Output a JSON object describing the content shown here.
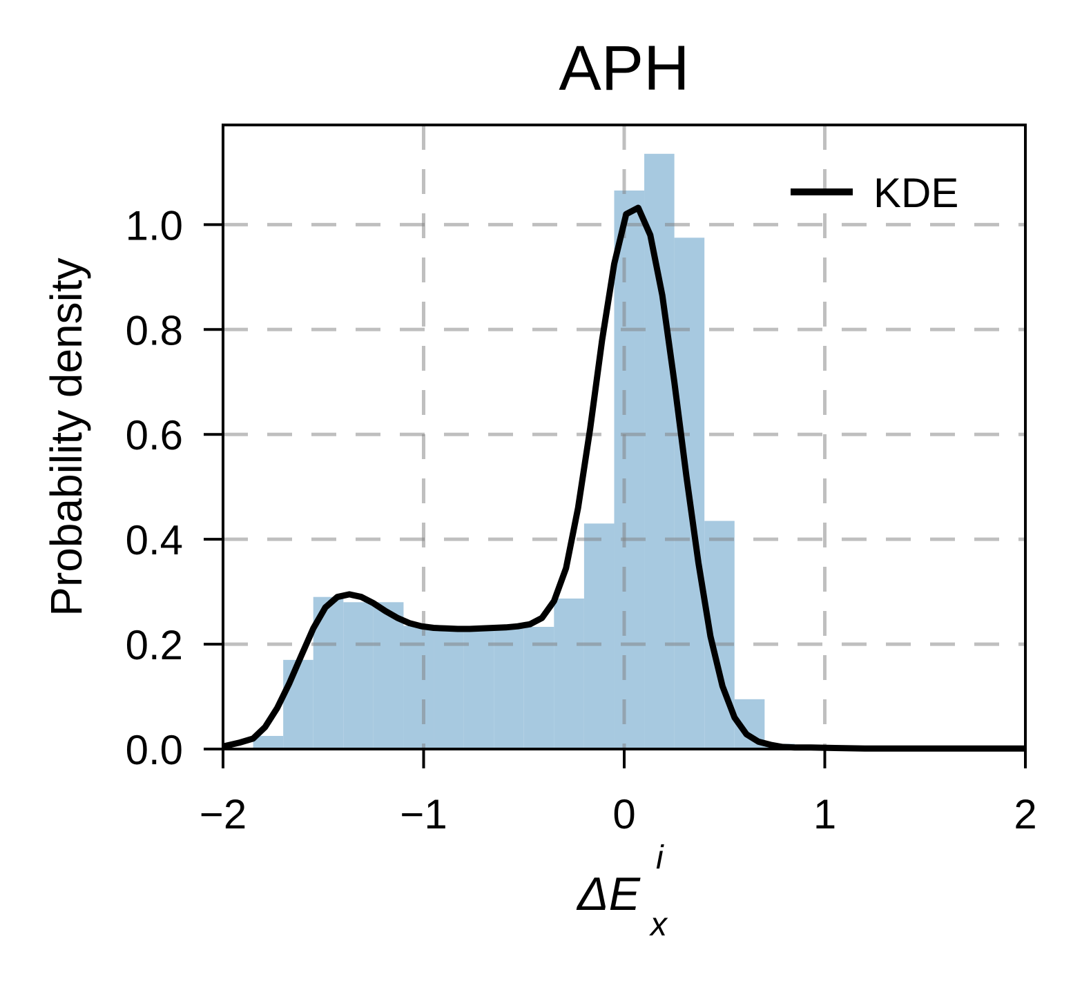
{
  "chart_data": {
    "type": "bar",
    "title": "APH",
    "ylabel": "Probability density",
    "xlabel": {
      "base": "ΔE",
      "superscript": "i",
      "subscript": "x"
    },
    "xlim": [
      -2,
      2
    ],
    "ylim": [
      0,
      1.19
    ],
    "xticks": [
      -2,
      -1,
      0,
      1,
      2
    ],
    "xtick_labels": [
      "−2",
      "−1",
      "0",
      "1",
      "2"
    ],
    "yticks": [
      0.0,
      0.2,
      0.4,
      0.6,
      0.8,
      1.0
    ],
    "ytick_labels": [
      "0.0",
      "0.2",
      "0.4",
      "0.6",
      "0.8",
      "1.0"
    ],
    "grid": true,
    "legend_position": "top-right",
    "legend": [
      {
        "label": "KDE",
        "color": "#000000"
      }
    ],
    "histogram": {
      "color": "#a7c9e0",
      "bin_edges": [
        -1.85,
        -1.7,
        -1.55,
        -1.4,
        -1.25,
        -1.1,
        -0.95,
        -0.8,
        -0.65,
        -0.5,
        -0.35,
        -0.2,
        -0.05,
        0.1,
        0.25,
        0.4,
        0.55,
        0.7,
        0.85
      ],
      "values": [
        0.025,
        0.17,
        0.29,
        0.28,
        0.28,
        0.235,
        0.235,
        0.235,
        0.235,
        0.233,
        0.287,
        0.43,
        1.065,
        1.135,
        0.975,
        0.435,
        0.095,
        0.01
      ]
    },
    "kde": {
      "name": "KDE",
      "color": "#000000",
      "x": [
        -2.0,
        -1.92,
        -1.85,
        -1.79,
        -1.73,
        -1.67,
        -1.61,
        -1.55,
        -1.49,
        -1.43,
        -1.37,
        -1.31,
        -1.25,
        -1.19,
        -1.13,
        -1.07,
        -1.01,
        -0.95,
        -0.89,
        -0.83,
        -0.77,
        -0.71,
        -0.65,
        -0.59,
        -0.53,
        -0.47,
        -0.41,
        -0.35,
        -0.29,
        -0.23,
        -0.17,
        -0.11,
        -0.05,
        0.01,
        0.07,
        0.13,
        0.19,
        0.25,
        0.31,
        0.37,
        0.43,
        0.49,
        0.55,
        0.61,
        0.67,
        0.73,
        0.79,
        0.85,
        0.93,
        1.05,
        1.2,
        1.4,
        1.7,
        2.0
      ],
      "y": [
        0.005,
        0.012,
        0.02,
        0.042,
        0.078,
        0.125,
        0.178,
        0.23,
        0.27,
        0.29,
        0.295,
        0.29,
        0.278,
        0.263,
        0.25,
        0.24,
        0.234,
        0.231,
        0.23,
        0.229,
        0.229,
        0.23,
        0.231,
        0.232,
        0.234,
        0.238,
        0.25,
        0.282,
        0.345,
        0.46,
        0.61,
        0.78,
        0.925,
        1.02,
        1.032,
        0.98,
        0.865,
        0.7,
        0.52,
        0.355,
        0.215,
        0.12,
        0.06,
        0.028,
        0.014,
        0.008,
        0.004,
        0.003,
        0.003,
        0.002,
        0.001,
        0.001,
        0.001,
        0.001
      ]
    }
  }
}
